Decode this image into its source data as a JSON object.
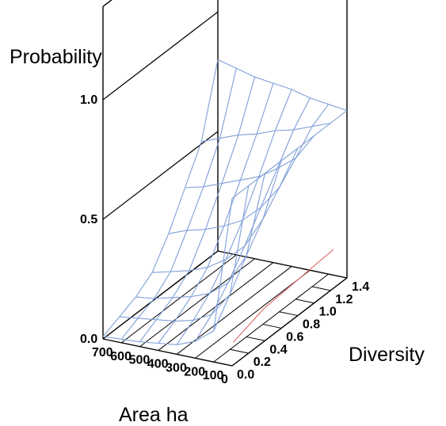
{
  "chart_data": {
    "type": "surface",
    "z_label": "Probability",
    "x_label": "Area ha",
    "y_label": "Diversity",
    "z_ticks": [
      "0.0",
      "0.5",
      "1.0"
    ],
    "x_ticks": [
      "700",
      "600",
      "500",
      "400",
      "300",
      "200",
      "100",
      "0"
    ],
    "y_ticks": [
      "0.0",
      "0.2",
      "0.4",
      "0.6",
      "0.8",
      "1.0",
      "1.2",
      "1.4"
    ],
    "zlim": [
      0,
      1
    ],
    "xlim": [
      0,
      700
    ],
    "ylim": [
      0,
      1.4
    ],
    "area_grid": [
      700,
      600,
      500,
      400,
      300,
      200,
      100,
      0
    ],
    "diversity_grid": [
      1.4,
      1.2,
      1.0,
      0.8,
      0.6,
      0.4,
      0.2,
      0.0
    ],
    "probability": [
      [
        0.8,
        0.78,
        0.76,
        0.75,
        0.74,
        0.72,
        0.71,
        0.7
      ],
      [
        0.51,
        0.54,
        0.57,
        0.59,
        0.62,
        0.64,
        0.67,
        0.7
      ],
      [
        0.37,
        0.39,
        0.42,
        0.45,
        0.48,
        0.53,
        0.59,
        0.7
      ],
      [
        0.23,
        0.26,
        0.28,
        0.31,
        0.35,
        0.42,
        0.52,
        0.7
      ],
      [
        0.12,
        0.14,
        0.16,
        0.19,
        0.24,
        0.31,
        0.44,
        0.7
      ],
      [
        0.07,
        0.08,
        0.1,
        0.12,
        0.15,
        0.21,
        0.34,
        0.7
      ],
      [
        0.04,
        0.05,
        0.06,
        0.07,
        0.09,
        0.13,
        0.23,
        0.7
      ],
      [
        0.01,
        0.015,
        0.02,
        0.03,
        0.04,
        0.07,
        0.13,
        0.7
      ]
    ],
    "colors": {
      "surface": "#7f9fd8",
      "axis": "#000000",
      "highlight": "#e07070"
    },
    "grid": true
  }
}
